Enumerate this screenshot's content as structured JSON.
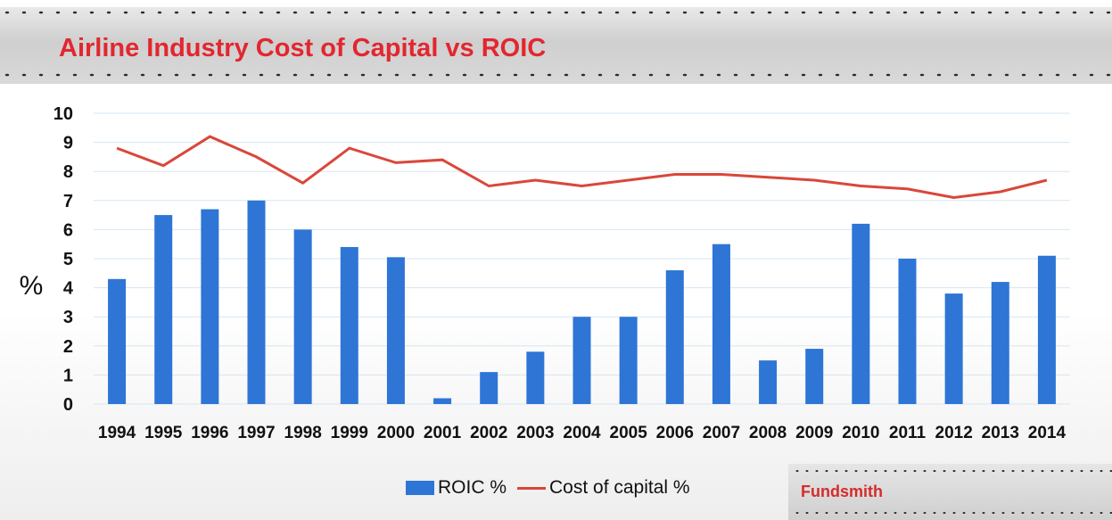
{
  "title": "Airline Industry Cost of Capital vs ROIC",
  "brand": "Fundsmith",
  "colors": {
    "title": "#e3262f",
    "bar": "#2e75d6",
    "line": "#d9473a",
    "grid": "#d6e6f2"
  },
  "chart_data": {
    "type": "bar",
    "title": "Airline Industry Cost of Capital vs ROIC",
    "ylabel": "%",
    "xlabel": "",
    "ylim": [
      0,
      10
    ],
    "yticks": [
      0,
      1,
      2,
      3,
      4,
      5,
      6,
      7,
      8,
      9,
      10
    ],
    "grid": true,
    "legend_position": "bottom",
    "categories": [
      "1994",
      "1995",
      "1996",
      "1997",
      "1998",
      "1999",
      "2000",
      "2001",
      "2002",
      "2003",
      "2004",
      "2005",
      "2006",
      "2007",
      "2008",
      "2009",
      "2010",
      "2011",
      "2012",
      "2013",
      "2014"
    ],
    "series": [
      {
        "name": "ROIC %",
        "type": "bar",
        "values": [
          4.3,
          6.5,
          6.7,
          7.0,
          6.0,
          5.4,
          5.05,
          0.2,
          1.1,
          1.8,
          3.0,
          3.0,
          4.6,
          5.5,
          1.5,
          1.9,
          6.2,
          5.0,
          3.8,
          4.2,
          5.1
        ]
      },
      {
        "name": "Cost of capital %",
        "type": "line",
        "values": [
          8.8,
          8.2,
          9.2,
          8.5,
          7.6,
          8.8,
          8.3,
          8.4,
          7.5,
          7.7,
          7.5,
          7.7,
          7.9,
          7.9,
          7.8,
          7.7,
          7.5,
          7.4,
          7.1,
          7.3,
          7.7
        ]
      }
    ]
  }
}
